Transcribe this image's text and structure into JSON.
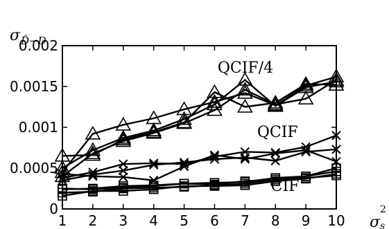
{
  "chart_data": {
    "type": "line",
    "y_label": "σ",
    "y_label_sub": "D̂−D",
    "x_label": "σ",
    "x_label_sub": "s",
    "x_label_sup": "2",
    "xlim": [
      1,
      10
    ],
    "ylim": [
      0,
      0.002
    ],
    "x_ticks": [
      1,
      2,
      3,
      4,
      5,
      6,
      7,
      8,
      9,
      10
    ],
    "y_ticks": [
      {
        "value": 0,
        "label": "0"
      },
      {
        "value": 0.0005,
        "label": "0.0005"
      },
      {
        "value": 0.001,
        "label": "0.001"
      },
      {
        "value": 0.0015,
        "label": "0.0015"
      },
      {
        "value": 0.002,
        "label": "0.002"
      }
    ],
    "grid": false,
    "annotations": [
      {
        "text": "QCIF/4",
        "x": 6.1,
        "y": 0.00167
      },
      {
        "text": "QCIF",
        "x": 7.4,
        "y": 0.00088
      },
      {
        "text": "CIF",
        "x": 7.85,
        "y": 0.00022
      }
    ],
    "groups": [
      {
        "marker": "triangle",
        "series": [
          {
            "x": [
              1,
              2,
              3,
              4,
              5,
              6,
              7,
              8,
              9,
              10
            ],
            "y": [
              0.00045,
              0.00092,
              0.00103,
              0.00111,
              0.00122,
              0.00131,
              0.00142,
              0.00127,
              0.00151,
              0.00162
            ]
          },
          {
            "x": [
              1,
              2,
              3,
              4,
              5,
              6,
              7,
              8,
              9,
              10
            ],
            "y": [
              0.0004,
              0.00068,
              0.00083,
              0.00093,
              0.00105,
              0.00121,
              0.00146,
              0.00128,
              0.00135,
              0.00158
            ]
          },
          {
            "x": [
              1,
              2,
              3,
              4,
              5,
              6,
              7,
              8,
              9,
              10
            ],
            "y": [
              0.00065,
              0.00066,
              0.00085,
              0.00094,
              0.00106,
              0.00143,
              0.00125,
              0.0013,
              0.00153,
              0.00152
            ]
          },
          {
            "x": [
              1,
              2,
              3,
              4,
              5,
              6,
              7,
              8,
              9,
              10
            ],
            "y": [
              0.0005,
              0.00072,
              0.00087,
              0.00096,
              0.0011,
              0.00128,
              0.00158,
              0.00126,
              0.00149,
              0.00156
            ]
          }
        ]
      },
      {
        "marker": "x",
        "series": [
          {
            "x": [
              1,
              2,
              3,
              4,
              5,
              6,
              7,
              8,
              9,
              10
            ],
            "y": [
              0.00038,
              0.00045,
              0.00055,
              0.00056,
              0.00055,
              0.00064,
              0.0007,
              0.00069,
              0.00076,
              0.0009
            ]
          },
          {
            "x": [
              1,
              2,
              3,
              4,
              5,
              6,
              7,
              8,
              9,
              10
            ],
            "y": [
              0.00035,
              0.00042,
              0.00047,
              0.00054,
              0.00057,
              0.00061,
              0.00063,
              0.00059,
              0.0007,
              0.00073
            ]
          },
          {
            "x": [
              1,
              2,
              3,
              4,
              5,
              6,
              7,
              8,
              9,
              10
            ],
            "y": [
              0.00043,
              0.0004,
              0.00039,
              0.00035,
              0.00052,
              0.00066,
              0.00061,
              0.00068,
              0.00072,
              0.00058
            ]
          }
        ]
      },
      {
        "marker": "square",
        "series": [
          {
            "x": [
              1,
              2,
              3,
              4,
              5,
              6,
              7,
              8,
              9,
              10
            ],
            "y": [
              0.00025,
              0.00024,
              0.00026,
              0.00028,
              0.00031,
              0.0003,
              0.00034,
              0.00036,
              0.0004,
              0.0005
            ]
          },
          {
            "x": [
              1,
              2,
              3,
              4,
              5,
              6,
              7,
              8,
              9,
              10
            ],
            "y": [
              0.0002,
              0.00021,
              0.00025,
              0.00026,
              0.00027,
              0.00029,
              0.00031,
              0.00036,
              0.00038,
              0.00041
            ]
          },
          {
            "x": [
              1,
              2,
              3,
              4,
              5,
              6,
              7,
              8,
              9,
              10
            ],
            "y": [
              0.00016,
              0.00022,
              0.00022,
              0.00024,
              0.00028,
              0.00028,
              0.00029,
              0.00034,
              0.00037,
              0.00043
            ]
          },
          {
            "x": [
              1,
              2,
              3,
              4,
              5,
              6,
              7,
              8,
              9,
              10
            ],
            "y": [
              0.00024,
              0.00025,
              0.00028,
              0.00029,
              0.00031,
              0.00032,
              0.00033,
              0.00038,
              0.0004,
              0.00046
            ]
          }
        ]
      }
    ]
  }
}
